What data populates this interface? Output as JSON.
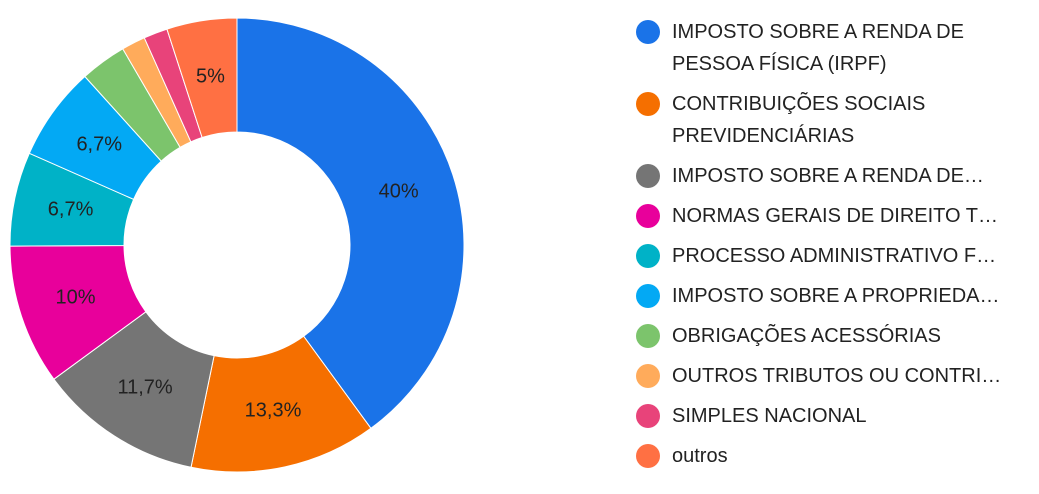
{
  "chart_data": {
    "type": "donut",
    "categories": [
      "IMPOSTO SOBRE A RENDA DE PESSOA FÍSICA (IRPF)",
      "CONTRIBUIÇÕES SOCIAIS PREVIDENCIÁRIAS",
      "IMPOSTO SOBRE A RENDA DE…",
      "NORMAS GERAIS DE DIREITO T…",
      "PROCESSO ADMINISTRATIVO F…",
      "IMPOSTO SOBRE A PROPRIEDA…",
      "OBRIGAÇÕES ACESSÓRIAS",
      "OUTROS TRIBUTOS OU CONTRI…",
      "SIMPLES NACIONAL",
      "outros"
    ],
    "values": [
      40,
      13.3,
      11.7,
      10,
      6.7,
      6.7,
      3.3,
      1.7,
      1.7,
      5
    ],
    "value_labels": [
      "40%",
      "13,3%",
      "11,7%",
      "10%",
      "6,7%",
      "6,7%",
      null,
      null,
      null,
      "5%"
    ],
    "colors": [
      "#1a73e8",
      "#f56f00",
      "#757575",
      "#e8009b",
      "#00b2c7",
      "#03a9f4",
      "#7cc46c",
      "#ffab5b",
      "#e8437a",
      "#ff7043"
    ]
  }
}
